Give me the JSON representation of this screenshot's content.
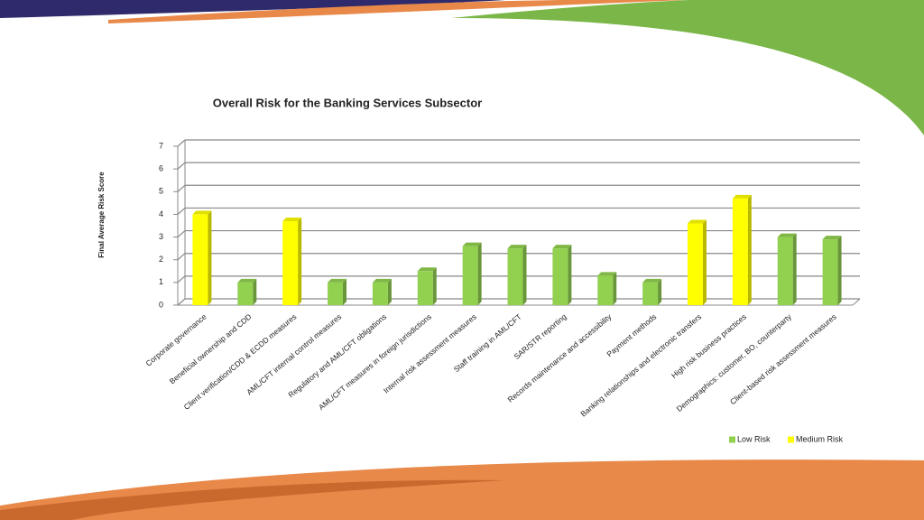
{
  "chart_data": {
    "type": "bar",
    "title": "Overall Risk for the Banking Services Subsector",
    "y_label": "Final Average Risk Score",
    "categories": [
      "Corporate governance",
      "Beneficial ownership and CDD",
      "Client verification/CDD & ECDD measures",
      "AML/CFT internal control measures",
      "Regulatory and AML/CFT obligations",
      "AML/CFT measures in foreign jurisdictions",
      "Internal risk assessment measures",
      "Staff training in AML/CFT",
      "SAR/STR reporting",
      "Records maintenance and accessibility",
      "Payment methods",
      "Banking relationships and electronic transfers",
      "High risk business practices",
      "Demographics: customer, BO, counterparty",
      "Client-based risk assessment measures"
    ],
    "series": [
      {
        "name": "Low Risk",
        "color": "#92d050",
        "values": [
          null,
          1.0,
          null,
          1.0,
          1.0,
          1.5,
          2.6,
          2.5,
          2.5,
          1.3,
          1.0,
          null,
          null,
          3.0,
          2.9
        ]
      },
      {
        "name": "Medium Risk",
        "color": "#ffff00",
        "values": [
          4.0,
          null,
          3.7,
          null,
          null,
          null,
          null,
          null,
          null,
          null,
          null,
          3.6,
          4.7,
          null,
          null
        ]
      }
    ],
    "ylim": [
      0,
      7
    ],
    "yticks": [
      0,
      1,
      2,
      3,
      4,
      5,
      6,
      7
    ],
    "grid": true,
    "legend": "bottom-right"
  }
}
